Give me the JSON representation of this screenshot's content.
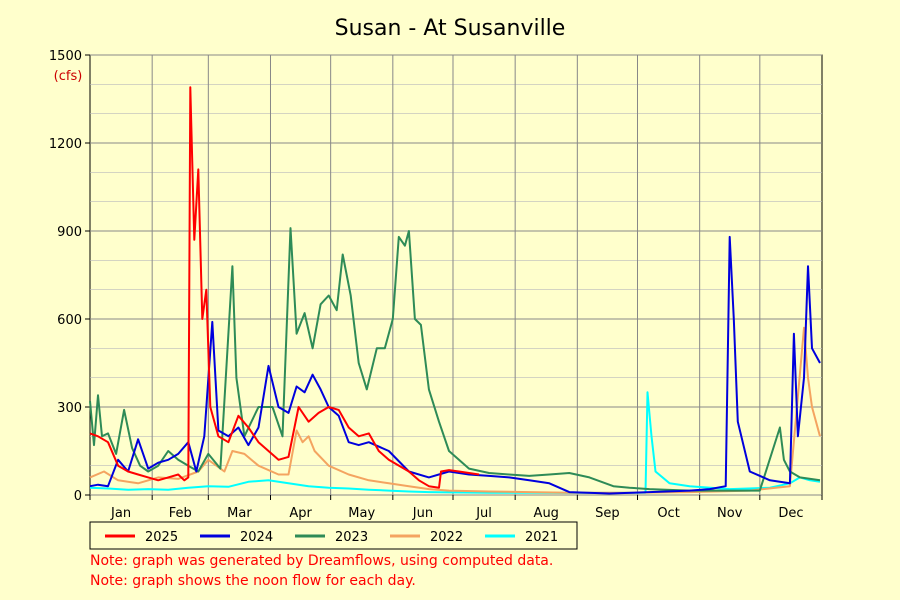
{
  "chart_data": {
    "type": "line",
    "title": "Susan - At Susanville",
    "ylabel": "(cfs)",
    "ylim": [
      0,
      1500
    ],
    "yticks": [
      "1500",
      "1200",
      "900",
      "600",
      "300",
      "0"
    ],
    "months": [
      "Jan",
      "Feb",
      "Mar",
      "Apr",
      "May",
      "Jun",
      "Jul",
      "Aug",
      "Sep",
      "Oct",
      "Nov",
      "Dec"
    ],
    "grid": true,
    "legend_position": "bottom",
    "colors": {
      "2025": "#ff0000",
      "2024": "#0000dd",
      "2023": "#2e8b57",
      "2022": "#f4a460",
      "2021": "#00ffff"
    },
    "series": [
      {
        "name": "2021",
        "points": [
          [
            1,
            25
          ],
          [
            10,
            22
          ],
          [
            20,
            18
          ],
          [
            30,
            20
          ],
          [
            40,
            18
          ],
          [
            50,
            25
          ],
          [
            60,
            30
          ],
          [
            70,
            28
          ],
          [
            80,
            45
          ],
          [
            90,
            50
          ],
          [
            100,
            40
          ],
          [
            110,
            30
          ],
          [
            120,
            25
          ],
          [
            130,
            22
          ],
          [
            140,
            18
          ],
          [
            150,
            15
          ],
          [
            160,
            12
          ],
          [
            170,
            10
          ],
          [
            180,
            9
          ],
          [
            200,
            8
          ],
          [
            220,
            8
          ],
          [
            240,
            7
          ],
          [
            260,
            7
          ],
          [
            278,
            8
          ],
          [
            279,
            350
          ],
          [
            281,
            200
          ],
          [
            283,
            80
          ],
          [
            290,
            40
          ],
          [
            300,
            30
          ],
          [
            320,
            20
          ],
          [
            340,
            25
          ],
          [
            350,
            40
          ],
          [
            355,
            60
          ],
          [
            360,
            50
          ],
          [
            365,
            45
          ]
        ]
      },
      {
        "name": "2022",
        "points": [
          [
            1,
            60
          ],
          [
            8,
            80
          ],
          [
            15,
            50
          ],
          [
            25,
            40
          ],
          [
            35,
            60
          ],
          [
            45,
            55
          ],
          [
            55,
            80
          ],
          [
            60,
            120
          ],
          [
            68,
            80
          ],
          [
            72,
            150
          ],
          [
            78,
            140
          ],
          [
            85,
            100
          ],
          [
            95,
            70
          ],
          [
            100,
            70
          ],
          [
            104,
            220
          ],
          [
            107,
            180
          ],
          [
            110,
            200
          ],
          [
            113,
            150
          ],
          [
            120,
            100
          ],
          [
            130,
            70
          ],
          [
            140,
            50
          ],
          [
            150,
            40
          ],
          [
            160,
            30
          ],
          [
            170,
            20
          ],
          [
            180,
            15
          ],
          [
            200,
            12
          ],
          [
            220,
            10
          ],
          [
            240,
            8
          ],
          [
            270,
            8
          ],
          [
            300,
            10
          ],
          [
            330,
            15
          ],
          [
            350,
            30
          ],
          [
            357,
            570
          ],
          [
            359,
            400
          ],
          [
            361,
            300
          ],
          [
            365,
            200
          ]
        ]
      },
      {
        "name": "2023",
        "points": [
          [
            1,
            320
          ],
          [
            3,
            170
          ],
          [
            5,
            340
          ],
          [
            7,
            200
          ],
          [
            10,
            210
          ],
          [
            14,
            140
          ],
          [
            18,
            290
          ],
          [
            22,
            160
          ],
          [
            26,
            100
          ],
          [
            30,
            80
          ],
          [
            35,
            100
          ],
          [
            40,
            150
          ],
          [
            45,
            120
          ],
          [
            50,
            100
          ],
          [
            55,
            80
          ],
          [
            60,
            140
          ],
          [
            66,
            90
          ],
          [
            72,
            780
          ],
          [
            74,
            400
          ],
          [
            78,
            200
          ],
          [
            85,
            300
          ],
          [
            92,
            300
          ],
          [
            97,
            200
          ],
          [
            101,
            910
          ],
          [
            104,
            550
          ],
          [
            108,
            620
          ],
          [
            112,
            500
          ],
          [
            116,
            650
          ],
          [
            120,
            680
          ],
          [
            124,
            630
          ],
          [
            127,
            820
          ],
          [
            131,
            680
          ],
          [
            135,
            450
          ],
          [
            139,
            360
          ],
          [
            144,
            500
          ],
          [
            148,
            500
          ],
          [
            152,
            600
          ],
          [
            155,
            880
          ],
          [
            158,
            850
          ],
          [
            160,
            900
          ],
          [
            163,
            600
          ],
          [
            166,
            580
          ],
          [
            170,
            360
          ],
          [
            175,
            250
          ],
          [
            180,
            150
          ],
          [
            190,
            90
          ],
          [
            200,
            75
          ],
          [
            210,
            70
          ],
          [
            220,
            65
          ],
          [
            230,
            70
          ],
          [
            240,
            75
          ],
          [
            250,
            60
          ],
          [
            262,
            30
          ],
          [
            270,
            25
          ],
          [
            280,
            20
          ],
          [
            300,
            15
          ],
          [
            320,
            15
          ],
          [
            335,
            15
          ],
          [
            345,
            230
          ],
          [
            347,
            120
          ],
          [
            350,
            80
          ],
          [
            355,
            60
          ],
          [
            365,
            50
          ]
        ]
      },
      {
        "name": "2024",
        "points": [
          [
            1,
            30
          ],
          [
            5,
            35
          ],
          [
            10,
            30
          ],
          [
            15,
            120
          ],
          [
            20,
            80
          ],
          [
            25,
            190
          ],
          [
            30,
            90
          ],
          [
            35,
            110
          ],
          [
            40,
            120
          ],
          [
            45,
            140
          ],
          [
            50,
            180
          ],
          [
            54,
            80
          ],
          [
            58,
            200
          ],
          [
            62,
            590
          ],
          [
            65,
            220
          ],
          [
            70,
            200
          ],
          [
            75,
            230
          ],
          [
            80,
            170
          ],
          [
            85,
            230
          ],
          [
            90,
            440
          ],
          [
            95,
            300
          ],
          [
            100,
            280
          ],
          [
            104,
            370
          ],
          [
            108,
            350
          ],
          [
            112,
            410
          ],
          [
            116,
            360
          ],
          [
            120,
            300
          ],
          [
            125,
            270
          ],
          [
            130,
            180
          ],
          [
            135,
            170
          ],
          [
            140,
            180
          ],
          [
            150,
            150
          ],
          [
            160,
            80
          ],
          [
            170,
            60
          ],
          [
            180,
            80
          ],
          [
            190,
            70
          ],
          [
            200,
            65
          ],
          [
            210,
            60
          ],
          [
            220,
            50
          ],
          [
            230,
            40
          ],
          [
            240,
            10
          ],
          [
            260,
            5
          ],
          [
            280,
            10
          ],
          [
            300,
            15
          ],
          [
            310,
            20
          ],
          [
            318,
            30
          ],
          [
            320,
            880
          ],
          [
            322,
            600
          ],
          [
            324,
            250
          ],
          [
            330,
            80
          ],
          [
            340,
            50
          ],
          [
            350,
            40
          ],
          [
            352,
            550
          ],
          [
            354,
            200
          ],
          [
            357,
            400
          ],
          [
            359,
            780
          ],
          [
            361,
            500
          ],
          [
            365,
            450
          ]
        ]
      },
      {
        "name": "2025",
        "points": [
          [
            1,
            210
          ],
          [
            5,
            200
          ],
          [
            10,
            180
          ],
          [
            15,
            100
          ],
          [
            20,
            80
          ],
          [
            25,
            70
          ],
          [
            30,
            60
          ],
          [
            35,
            50
          ],
          [
            40,
            60
          ],
          [
            45,
            70
          ],
          [
            48,
            50
          ],
          [
            50,
            60
          ],
          [
            51,
            1390
          ],
          [
            53,
            870
          ],
          [
            55,
            1110
          ],
          [
            57,
            600
          ],
          [
            59,
            700
          ],
          [
            61,
            300
          ],
          [
            65,
            200
          ],
          [
            70,
            180
          ],
          [
            75,
            270
          ],
          [
            80,
            230
          ],
          [
            85,
            180
          ],
          [
            90,
            150
          ],
          [
            95,
            120
          ],
          [
            100,
            130
          ],
          [
            105,
            300
          ],
          [
            110,
            250
          ],
          [
            115,
            280
          ],
          [
            120,
            300
          ],
          [
            125,
            290
          ],
          [
            130,
            230
          ],
          [
            135,
            200
          ],
          [
            140,
            210
          ],
          [
            145,
            150
          ],
          [
            150,
            120
          ],
          [
            160,
            80
          ],
          [
            165,
            50
          ],
          [
            170,
            30
          ],
          [
            175,
            25
          ],
          [
            176,
            80
          ],
          [
            180,
            85
          ],
          [
            185,
            80
          ],
          [
            190,
            75
          ],
          [
            195,
            70
          ]
        ]
      }
    ]
  },
  "legend": [
    {
      "label": "2025",
      "color": "#ff0000"
    },
    {
      "label": "2024",
      "color": "#0000dd"
    },
    {
      "label": "2023",
      "color": "#2e8b57"
    },
    {
      "label": "2022",
      "color": "#f4a460"
    },
    {
      "label": "2021",
      "color": "#00ffff"
    }
  ],
  "notes": [
    "Note: graph was generated by Dreamflows, using computed data.",
    "Note: graph shows the noon flow for each day."
  ]
}
